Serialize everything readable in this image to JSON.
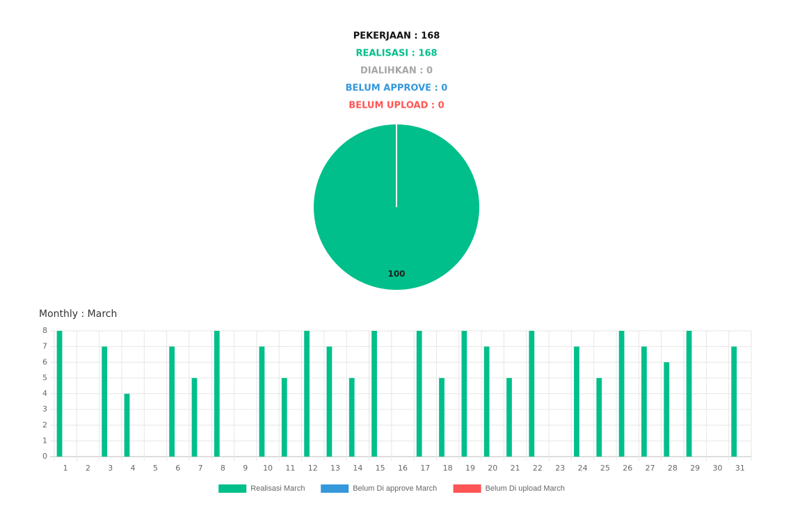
{
  "chart_data": [
    {
      "type": "pie",
      "annotations": [
        {
          "text": "PEKERJAAN : 168",
          "color": "#111111"
        },
        {
          "text": "REALISASI : 168",
          "color": "#00bf8a"
        },
        {
          "text": "DIALIHKAN : 0",
          "color": "#a6a6a6"
        },
        {
          "text": "BELUM APPROVE : 0",
          "color": "#3498db"
        },
        {
          "text": "BELUM UPLOAD : 0",
          "color": "#ff5555"
        }
      ],
      "values": [
        100
      ],
      "colors": [
        "#00bf8a"
      ]
    },
    {
      "type": "bar",
      "title": "Monthly : March",
      "categories": [
        "1",
        "2",
        "3",
        "4",
        "5",
        "6",
        "7",
        "8",
        "9",
        "10",
        "11",
        "12",
        "13",
        "14",
        "15",
        "16",
        "17",
        "18",
        "19",
        "20",
        "21",
        "22",
        "23",
        "24",
        "25",
        "26",
        "27",
        "28",
        "29",
        "30",
        "31"
      ],
      "series": [
        {
          "name": "Realisasi March",
          "color": "#00bf8a",
          "values": [
            8,
            0,
            7,
            4,
            0,
            7,
            5,
            8,
            0,
            7,
            5,
            8,
            7,
            5,
            8,
            0,
            8,
            5,
            8,
            7,
            5,
            8,
            0,
            7,
            5,
            8,
            7,
            6,
            8,
            0,
            7
          ]
        },
        {
          "name": "Belum Di approve March",
          "color": "#3498db",
          "values": [
            0,
            0,
            0,
            0,
            0,
            0,
            0,
            0,
            0,
            0,
            0,
            0,
            0,
            0,
            0,
            0,
            0,
            0,
            0,
            0,
            0,
            0,
            0,
            0,
            0,
            0,
            0,
            0,
            0,
            0,
            0
          ]
        },
        {
          "name": "Belum Di upload March",
          "color": "#ff5555",
          "values": [
            0,
            0,
            0,
            0,
            0,
            0,
            0,
            0,
            0,
            0,
            0,
            0,
            0,
            0,
            0,
            0,
            0,
            0,
            0,
            0,
            0,
            0,
            0,
            0,
            0,
            0,
            0,
            0,
            0,
            0,
            0
          ]
        }
      ],
      "ylim": [
        0,
        8
      ],
      "yticks": [
        0,
        1,
        2,
        3,
        4,
        5,
        6,
        7,
        8
      ],
      "grid": true
    }
  ]
}
